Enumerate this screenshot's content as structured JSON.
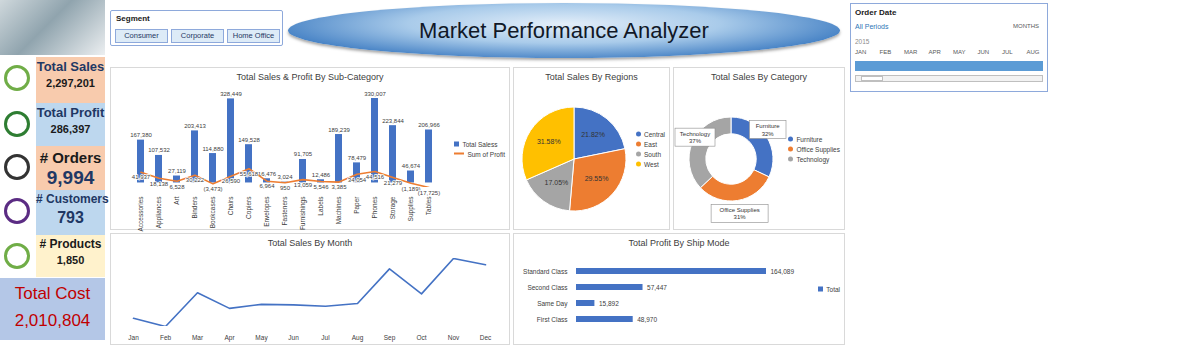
{
  "header": {
    "title": "Market Performance Analyzer"
  },
  "segment_slicer": {
    "title": "Segment",
    "items": [
      "Consumer",
      "Corporate",
      "Home Office"
    ]
  },
  "date_slicer": {
    "title": "Order Date",
    "selection": "All Periods",
    "level": "MONTHS",
    "year": "2015",
    "months": [
      "JAN",
      "FEB",
      "MAR",
      "APR",
      "MAY",
      "JUN",
      "JUL",
      "AUG"
    ]
  },
  "kpis": [
    {
      "label": "Total Sales",
      "value": "2,297,201"
    },
    {
      "label": "Total Profit",
      "value": "286,397"
    },
    {
      "label": "# Orders",
      "value": "9,994"
    },
    {
      "label": "# Customers",
      "value": "793"
    },
    {
      "label": "# Products",
      "value": "1,850"
    },
    {
      "label": "Total Cost",
      "value": "2,010,804"
    }
  ],
  "chart_data": [
    {
      "type": "bar",
      "title": "Total Sales & Profit By Sub-Category",
      "categories": [
        "Accessories",
        "Appliances",
        "Art",
        "Binders",
        "Bookcases",
        "Chairs",
        "Copiers",
        "Envelopes",
        "Fasteners",
        "Furnishings",
        "Labels",
        "Machines",
        "Paper",
        "Phones",
        "Storage",
        "Supplies",
        "Tables"
      ],
      "series": [
        {
          "name": "Total Saless",
          "type": "bar",
          "color": "#4472C4",
          "values": [
            167380,
            107532,
            27119,
            203413,
            114880,
            328449,
            149528,
            16476,
            3024,
            91705,
            12486,
            189239,
            78479,
            330007,
            223844,
            46674,
            206966
          ],
          "value_labels": [
            "167,380",
            "107,532",
            "27,119",
            "203,413",
            "114,880",
            "328,449",
            "149,528",
            "16,476",
            "3,024",
            "91,705",
            "12,486",
            "189,239",
            "78,479",
            "330,007",
            "223,844",
            "46,674",
            "206,966"
          ]
        },
        {
          "name": "Sum of Profit",
          "type": "line",
          "color": "#ED7D31",
          "values": [
            41937,
            18138,
            6528,
            30222,
            -3473,
            26590,
            55618,
            6964,
            950,
            13059,
            5546,
            3385,
            34054,
            44516,
            21279,
            -1189,
            -17725
          ],
          "value_labels": [
            "41,937",
            "18,138",
            "6,528",
            "30,222",
            "(3,473)",
            "26,590",
            "55,618",
            "6,964",
            "950",
            "13,059",
            "5,546",
            "3,385",
            "34,054",
            "44,516",
            "21,279",
            "(1,189)",
            "(17,725)"
          ]
        }
      ],
      "data_labels": true,
      "tick_labels": "x",
      "legend": "right"
    },
    {
      "type": "pie",
      "title": "Total Sales By Regions",
      "categories": [
        "Central",
        "East",
        "South",
        "West"
      ],
      "values": [
        21.82,
        29.55,
        17.05,
        31.58
      ],
      "value_labels": [
        "21.82%",
        "29.55%",
        "17.05%",
        "31.58%"
      ],
      "colors": [
        "#4472C4",
        "#ED7D31",
        "#A5A5A5",
        "#FFC000"
      ],
      "data_labels": true,
      "legend": "right"
    },
    {
      "type": "donut",
      "title": "Total Sales By Category",
      "categories": [
        "Furniture",
        "Office Supplies",
        "Technology"
      ],
      "values": [
        32,
        31,
        37
      ],
      "value_labels": [
        "32%",
        "31%",
        "37%"
      ],
      "colors": [
        "#4472C4",
        "#ED7D31",
        "#A5A5A5"
      ],
      "data_labels": true,
      "legend": "right"
    },
    {
      "type": "line",
      "title": "Total Sales By Month",
      "categories": [
        "Jan",
        "Feb",
        "Mar",
        "Apr",
        "May",
        "Jun",
        "Jul",
        "Aug",
        "Sep",
        "Oct",
        "Nov",
        "Dec"
      ],
      "values": [
        94925,
        59751,
        205005,
        137762,
        155028,
        152719,
        147238,
        159044,
        307650,
        200323,
        352461,
        325294
      ],
      "color": "#4472C4",
      "tick_labels": "x"
    },
    {
      "type": "bar",
      "orientation": "horizontal",
      "title": "Total Profit By Ship Mode",
      "categories": [
        "Standard Class",
        "Second Class",
        "Same Day",
        "First Class"
      ],
      "series": [
        {
          "name": "Total",
          "color": "#4472C4",
          "values": [
            164089,
            57447,
            15892,
            48970
          ],
          "value_labels": [
            "164,089",
            "57,447",
            "15,892",
            "48,970"
          ]
        }
      ],
      "data_labels": true,
      "tick_labels": "y",
      "legend": "right"
    }
  ]
}
